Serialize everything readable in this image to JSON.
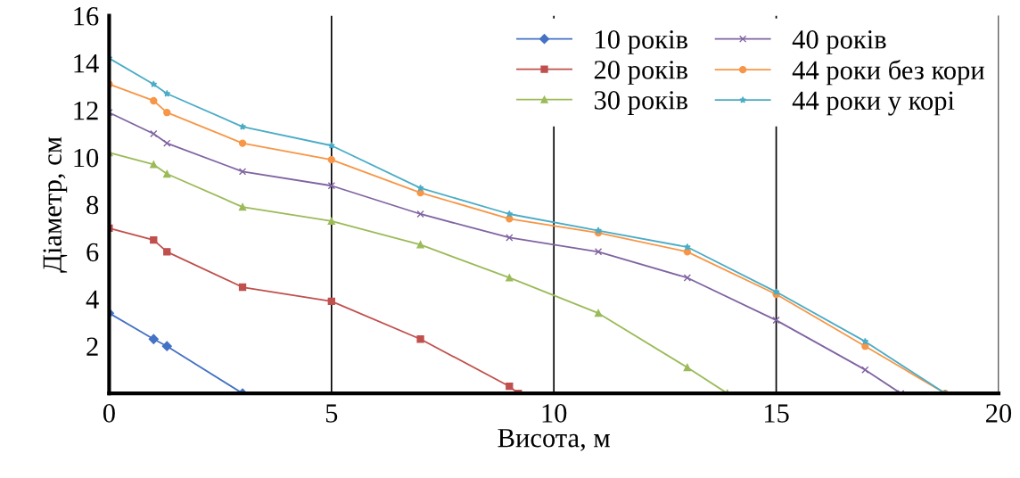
{
  "chart_data": {
    "type": "line",
    "xlabel": "Висота, м",
    "ylabel": "Діаметр, см",
    "xlim": [
      0,
      20
    ],
    "xticks": [
      0,
      5,
      10,
      15,
      20
    ],
    "ylim": [
      0,
      16
    ],
    "yticks": [
      2,
      4,
      6,
      8,
      10,
      12,
      14,
      16
    ],
    "grid": "x",
    "legend": "top right",
    "series": [
      {
        "name": "10 років",
        "color": "#4472c4",
        "marker": "diamond",
        "x": [
          0,
          1,
          1.3,
          3
        ],
        "values": [
          3.4,
          2.3,
          2.0,
          0
        ]
      },
      {
        "name": "20 років",
        "color": "#c0504d",
        "marker": "square",
        "x": [
          0,
          1,
          1.3,
          3,
          5,
          7,
          9,
          9.2
        ],
        "values": [
          7.0,
          6.5,
          6.0,
          4.5,
          3.9,
          2.3,
          0.3,
          0
        ]
      },
      {
        "name": "30 років",
        "color": "#9bbb59",
        "marker": "triangle",
        "x": [
          0,
          1,
          1.3,
          3,
          5,
          7,
          9,
          11,
          13,
          13.9
        ],
        "values": [
          10.2,
          9.7,
          9.3,
          7.9,
          7.3,
          6.3,
          4.9,
          3.4,
          1.1,
          0
        ]
      },
      {
        "name": "40 років",
        "color": "#8064a2",
        "marker": "cross",
        "x": [
          0,
          1,
          1.3,
          3,
          5,
          7,
          9,
          11,
          13,
          15,
          17,
          17.8
        ],
        "values": [
          11.9,
          11.0,
          10.6,
          9.4,
          8.8,
          7.6,
          6.6,
          6.0,
          4.9,
          3.1,
          1.0,
          0
        ]
      },
      {
        "name": "44 роки без кори",
        "color": "#f79646",
        "marker": "circle",
        "x": [
          0,
          1,
          1.3,
          3,
          5,
          7,
          9,
          11,
          13,
          15,
          17,
          18.8
        ],
        "values": [
          13.1,
          12.4,
          11.9,
          10.6,
          9.9,
          8.5,
          7.4,
          6.8,
          6.0,
          4.2,
          2.0,
          0
        ]
      },
      {
        "name": "44 роки у корі",
        "color": "#4bacc6",
        "marker": "star",
        "x": [
          0,
          1,
          1.3,
          3,
          5,
          7,
          9,
          11,
          13,
          15,
          17,
          18.8
        ],
        "values": [
          14.2,
          13.1,
          12.7,
          11.3,
          10.5,
          8.7,
          7.6,
          6.9,
          6.2,
          4.3,
          2.2,
          0
        ]
      }
    ]
  }
}
